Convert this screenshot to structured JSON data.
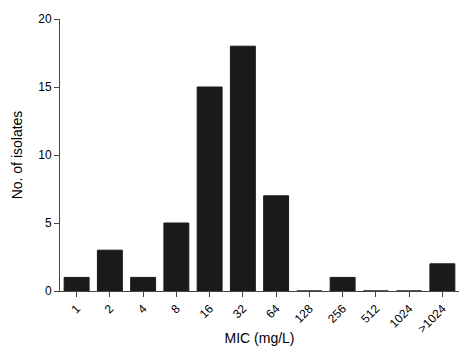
{
  "chart_data": {
    "type": "bar",
    "xlabel": "MIC (mg/L)",
    "ylabel": "No. of isolates",
    "categories": [
      "1",
      "2",
      "4",
      "8",
      "16",
      "32",
      "64",
      "128",
      "256",
      "512",
      "1024",
      ">1024"
    ],
    "values": [
      1,
      3,
      1,
      5,
      15,
      18,
      7,
      0,
      1,
      0,
      0,
      2
    ],
    "color": "#1a1a1a",
    "ylim": [
      0,
      20
    ],
    "yticks": [
      0,
      5,
      10,
      15,
      20
    ],
    "grid": false
  }
}
